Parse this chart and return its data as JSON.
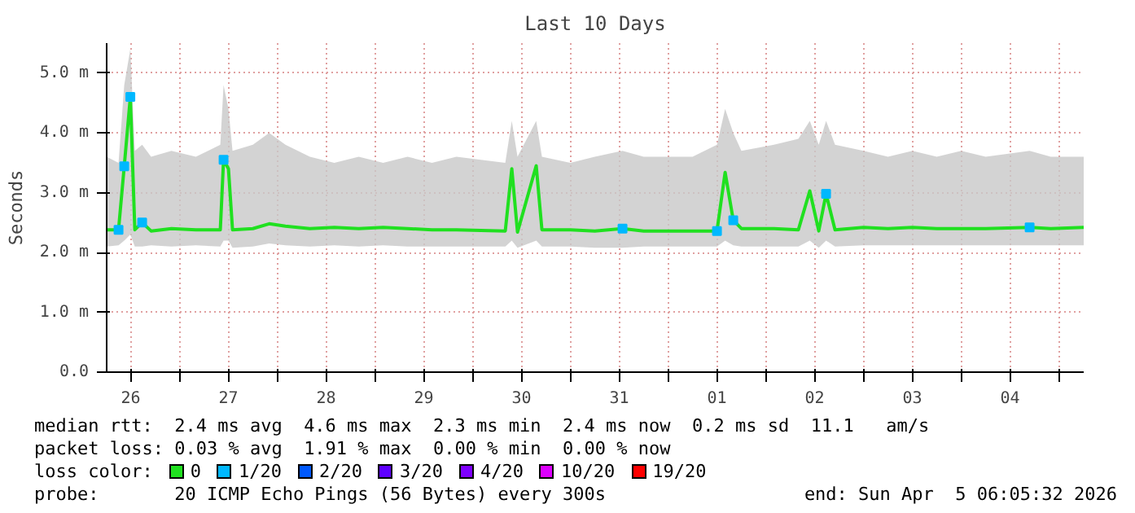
{
  "chart_data": {
    "type": "line",
    "title": "Last 10 Days",
    "ylabel": "Seconds",
    "xlim": [
      "2026-03-26T06:05",
      "2026-04-05T06:05"
    ],
    "xticks": [
      {
        "value": "2026-03-26T12:00",
        "label": "26"
      },
      {
        "value": "2026-03-27T00:00",
        "label": null
      },
      {
        "value": "2026-03-27T12:00",
        "label": "27"
      },
      {
        "value": "2026-03-28T00:00",
        "label": null
      },
      {
        "value": "2026-03-28T12:00",
        "label": "28"
      },
      {
        "value": "2026-03-29T00:00",
        "label": null
      },
      {
        "value": "2026-03-29T12:00",
        "label": "29"
      },
      {
        "value": "2026-03-30T00:00",
        "label": null
      },
      {
        "value": "2026-03-30T12:00",
        "label": "30"
      },
      {
        "value": "2026-03-31T00:00",
        "label": null
      },
      {
        "value": "2026-03-31T12:00",
        "label": "31"
      },
      {
        "value": "2026-04-01T00:00",
        "label": null
      },
      {
        "value": "2026-04-01T12:00",
        "label": "01"
      },
      {
        "value": "2026-04-02T00:00",
        "label": null
      },
      {
        "value": "2026-04-02T12:00",
        "label": "02"
      },
      {
        "value": "2026-04-03T00:00",
        "label": null
      },
      {
        "value": "2026-04-03T12:00",
        "label": "03"
      },
      {
        "value": "2026-04-04T00:00",
        "label": null
      },
      {
        "value": "2026-04-04T12:00",
        "label": "04"
      },
      {
        "value": "2026-04-05T00:00",
        "label": null
      }
    ],
    "ylim": [
      0,
      5.5
    ],
    "yticks": [
      {
        "value": 0,
        "label": "0.0"
      },
      {
        "value": 1,
        "label": "1.0 m"
      },
      {
        "value": 2,
        "label": "2.0 m"
      },
      {
        "value": 3,
        "label": "3.0 m"
      },
      {
        "value": 4,
        "label": "4.0 m"
      },
      {
        "value": 5,
        "label": "5.0 m"
      }
    ],
    "grid": true,
    "legend": "bottom",
    "legend_title": "loss color:",
    "series": [
      {
        "name": "0",
        "color": "#20e020",
        "x": [
          "2026-03-26T06:05",
          "2026-03-26T09:00",
          "2026-03-26T10:24",
          "2026-03-26T11:54",
          "2026-03-26T13:00",
          "2026-03-26T14:48",
          "2026-03-26T17:00",
          "2026-03-26T22:00",
          "2026-03-27T04:00",
          "2026-03-27T10:00",
          "2026-03-27T10:48",
          "2026-03-27T12:00",
          "2026-03-27T13:00",
          "2026-03-27T18:00",
          "2026-03-27T22:00",
          "2026-03-28T02:00",
          "2026-03-28T08:00",
          "2026-03-28T14:00",
          "2026-03-28T20:00",
          "2026-03-29T02:00",
          "2026-03-29T08:00",
          "2026-03-29T14:00",
          "2026-03-29T20:00",
          "2026-03-30T08:00",
          "2026-03-30T09:36",
          "2026-03-30T11:00",
          "2026-03-30T15:36",
          "2026-03-30T17:00",
          "2026-03-31T00:00",
          "2026-03-31T06:00",
          "2026-03-31T12:48",
          "2026-03-31T18:00",
          "2026-04-01T06:00",
          "2026-04-01T12:00",
          "2026-04-01T14:00",
          "2026-04-01T16:00",
          "2026-04-01T18:00",
          "2026-04-02T02:00",
          "2026-04-02T08:00",
          "2026-04-02T10:48",
          "2026-04-02T13:00",
          "2026-04-02T14:48",
          "2026-04-02T17:00",
          "2026-04-03T00:00",
          "2026-04-03T06:00",
          "2026-04-03T12:00",
          "2026-04-03T18:00",
          "2026-04-04T00:00",
          "2026-04-04T06:00",
          "2026-04-04T16:48",
          "2026-04-04T22:00",
          "2026-04-05T06:05"
        ],
        "values": [
          2.38,
          2.38,
          3.44,
          4.6,
          2.38,
          2.5,
          2.36,
          2.4,
          2.38,
          2.38,
          3.55,
          3.4,
          2.38,
          2.4,
          2.48,
          2.44,
          2.4,
          2.42,
          2.4,
          2.42,
          2.4,
          2.38,
          2.38,
          2.36,
          3.4,
          2.34,
          3.45,
          2.38,
          2.38,
          2.36,
          2.4,
          2.36,
          2.36,
          2.36,
          3.34,
          2.54,
          2.4,
          2.4,
          2.38,
          3.03,
          2.36,
          2.98,
          2.38,
          2.42,
          2.4,
          2.42,
          2.4,
          2.4,
          2.4,
          2.42,
          2.4,
          2.42
        ],
        "lower": [
          2.1,
          2.12,
          2.2,
          2.3,
          2.1,
          2.1,
          2.12,
          2.1,
          2.12,
          2.1,
          2.2,
          2.2,
          2.08,
          2.1,
          2.15,
          2.12,
          2.1,
          2.12,
          2.1,
          2.12,
          2.1,
          2.1,
          2.1,
          2.1,
          2.2,
          2.08,
          2.2,
          2.1,
          2.1,
          2.08,
          2.08,
          2.1,
          2.1,
          2.1,
          2.2,
          2.12,
          2.1,
          2.1,
          2.1,
          2.2,
          2.08,
          2.2,
          2.1,
          2.12,
          2.12,
          2.12,
          2.12,
          2.12,
          2.12,
          2.12,
          2.12,
          2.12
        ],
        "upper": [
          3.6,
          3.5,
          4.8,
          5.4,
          3.7,
          3.8,
          3.6,
          3.7,
          3.6,
          3.8,
          4.8,
          4.4,
          3.7,
          3.8,
          4.0,
          3.8,
          3.6,
          3.5,
          3.6,
          3.5,
          3.6,
          3.5,
          3.6,
          3.5,
          4.2,
          3.6,
          4.2,
          3.6,
          3.5,
          3.6,
          3.7,
          3.6,
          3.6,
          3.8,
          4.4,
          4.0,
          3.7,
          3.8,
          3.9,
          4.2,
          3.8,
          4.2,
          3.8,
          3.7,
          3.6,
          3.7,
          3.6,
          3.7,
          3.6,
          3.7,
          3.6,
          3.6
        ]
      },
      {
        "name": "1/20",
        "type": "scatter",
        "marker": "square",
        "color": "#00b8ff",
        "x": [
          "2026-03-26T09:00",
          "2026-03-26T10:24",
          "2026-03-26T11:54",
          "2026-03-26T14:48",
          "2026-03-27T10:48",
          "2026-03-31T12:48",
          "2026-04-01T12:00",
          "2026-04-01T16:00",
          "2026-04-02T14:48",
          "2026-04-04T16:48"
        ],
        "values": [
          2.38,
          3.44,
          4.6,
          2.5,
          3.55,
          2.4,
          2.36,
          2.54,
          2.98,
          2.42
        ]
      },
      {
        "name": "2/20",
        "type": "scatter",
        "marker": "square",
        "color": "#0059ff"
      },
      {
        "name": "3/20",
        "type": "scatter",
        "marker": "square",
        "color": "#5e00ff"
      },
      {
        "name": "4/20",
        "type": "scatter",
        "marker": "square",
        "color": "#7e00ff"
      },
      {
        "name": "10/20",
        "type": "scatter",
        "marker": "square",
        "color": "#dd00ff"
      },
      {
        "name": "19/20",
        "type": "scatter",
        "marker": "square",
        "color": "#ff0000"
      }
    ],
    "annotations": [
      "median rtt:  2.4 ms avg  4.6 ms max  2.3 ms min  2.4 ms now  0.2 ms sd  11.1   am/s",
      "packet loss: 0.03 % avg  1.91 % max  0.00 % min  0.00 % now",
      "probe:       20 ICMP Echo Pings (56 Bytes) every 300s",
      "end: Sun Apr  5 06:05:32 2026"
    ]
  }
}
